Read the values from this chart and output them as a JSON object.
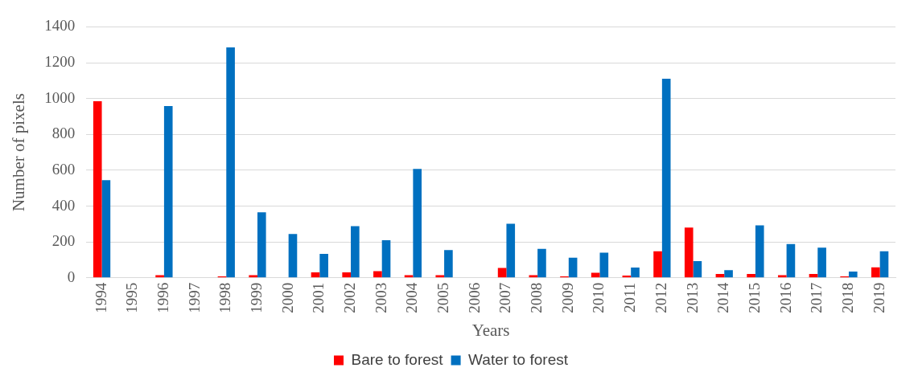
{
  "chart_data": {
    "type": "bar",
    "xlabel": "Years",
    "ylabel": "Number of pixels",
    "categories": [
      "1994",
      "1995",
      "1996",
      "1997",
      "1998",
      "1999",
      "2000",
      "2001",
      "2002",
      "2003",
      "2004",
      "2005",
      "2006",
      "2007",
      "2008",
      "2009",
      "2010",
      "2011",
      "2012",
      "2013",
      "2014",
      "2015",
      "2016",
      "2017",
      "2018",
      "2019"
    ],
    "series": [
      {
        "name": "Bare to forest",
        "color": "#ff0000",
        "values": [
          985,
          0,
          15,
          0,
          8,
          15,
          0,
          30,
          30,
          37,
          15,
          15,
          0,
          55,
          15,
          8,
          28,
          12,
          148,
          280,
          22,
          22,
          15,
          22,
          8,
          58
        ]
      },
      {
        "name": "Water to forest",
        "color": "#0070c0",
        "values": [
          545,
          0,
          958,
          0,
          1285,
          365,
          245,
          133,
          288,
          210,
          608,
          155,
          0,
          302,
          162,
          112,
          140,
          57,
          1110,
          93,
          43,
          293,
          188,
          168,
          35,
          148
        ]
      }
    ],
    "ylim": [
      0,
      1400
    ],
    "yticks": [
      0,
      200,
      400,
      600,
      800,
      1000,
      1200,
      1400
    ],
    "grid": "y",
    "legend": "bottom"
  }
}
